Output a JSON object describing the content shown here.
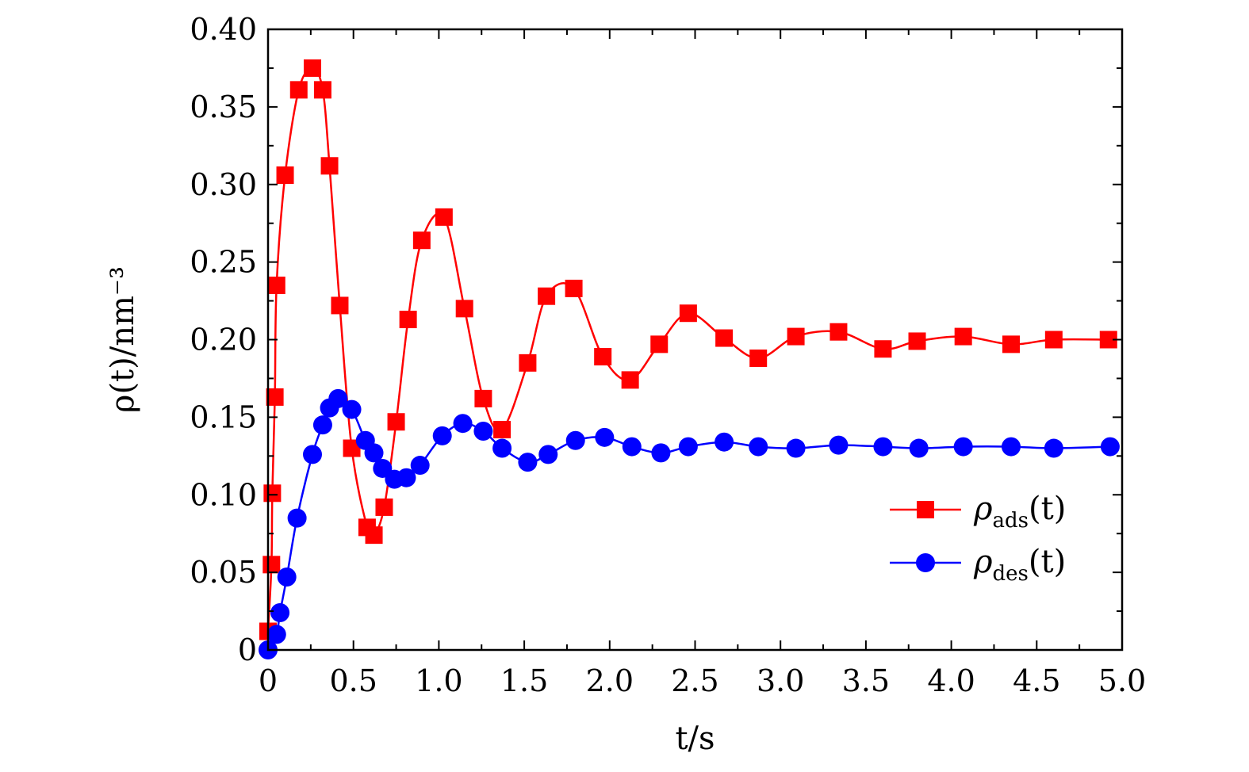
{
  "chart_data": {
    "type": "line",
    "xlabel": "t/s",
    "ylabel": "ρ(t)/nm⁻³",
    "xlim": [
      0,
      5.0
    ],
    "ylim": [
      0,
      0.4
    ],
    "x_ticks": [
      "0",
      "0.5",
      "1.0",
      "1.5",
      "2.0",
      "2.5",
      "3.0",
      "3.5",
      "4.0",
      "4.5",
      "5.0"
    ],
    "x_tick_values": [
      0,
      0.5,
      1.0,
      1.5,
      2.0,
      2.5,
      3.0,
      3.5,
      4.0,
      4.5,
      5.0
    ],
    "y_ticks": [
      "0",
      "0.05",
      "0.10",
      "0.15",
      "0.20",
      "0.25",
      "0.30",
      "0.35",
      "0.40"
    ],
    "y_tick_values": [
      0,
      0.05,
      0.1,
      0.15,
      0.2,
      0.25,
      0.3,
      0.35,
      0.4
    ],
    "grid": false,
    "legend_position": "right",
    "series": [
      {
        "name": "ρads(t)",
        "name_base": "ρ",
        "name_sub": "ads",
        "name_arg": "(t)",
        "color": "#ff0000",
        "marker": "square",
        "x": [
          0.0,
          0.02,
          0.025,
          0.04,
          0.05,
          0.1,
          0.18,
          0.26,
          0.32,
          0.36,
          0.42,
          0.49,
          0.58,
          0.62,
          0.68,
          0.75,
          0.82,
          0.9,
          1.03,
          1.15,
          1.26,
          1.37,
          1.52,
          1.63,
          1.79,
          1.96,
          2.12,
          2.29,
          2.46,
          2.67,
          2.87,
          3.09,
          3.34,
          3.6,
          3.8,
          4.07,
          4.35,
          4.6,
          4.92
        ],
        "y": [
          0.012,
          0.055,
          0.101,
          0.163,
          0.235,
          0.306,
          0.361,
          0.375,
          0.361,
          0.312,
          0.222,
          0.13,
          0.079,
          0.074,
          0.092,
          0.147,
          0.213,
          0.264,
          0.279,
          0.22,
          0.162,
          0.142,
          0.185,
          0.228,
          0.233,
          0.189,
          0.174,
          0.197,
          0.217,
          0.201,
          0.188,
          0.202,
          0.205,
          0.194,
          0.199,
          0.202,
          0.197,
          0.2,
          0.2
        ]
      },
      {
        "name": "ρdes(t)",
        "name_base": "ρ",
        "name_sub": "des",
        "name_arg": "(t)",
        "color": "#0000ff",
        "marker": "circle",
        "x": [
          0.0,
          0.05,
          0.07,
          0.11,
          0.17,
          0.26,
          0.32,
          0.36,
          0.41,
          0.49,
          0.57,
          0.62,
          0.67,
          0.74,
          0.81,
          0.89,
          1.02,
          1.14,
          1.26,
          1.37,
          1.52,
          1.64,
          1.8,
          1.97,
          2.13,
          2.3,
          2.46,
          2.67,
          2.87,
          3.09,
          3.34,
          3.6,
          3.81,
          4.07,
          4.35,
          4.6,
          4.93
        ],
        "y": [
          0.0,
          0.01,
          0.024,
          0.047,
          0.085,
          0.126,
          0.145,
          0.156,
          0.162,
          0.155,
          0.135,
          0.127,
          0.117,
          0.11,
          0.111,
          0.119,
          0.138,
          0.146,
          0.141,
          0.13,
          0.121,
          0.126,
          0.135,
          0.137,
          0.131,
          0.127,
          0.131,
          0.134,
          0.131,
          0.13,
          0.132,
          0.131,
          0.13,
          0.131,
          0.131,
          0.13,
          0.131
        ]
      }
    ]
  }
}
